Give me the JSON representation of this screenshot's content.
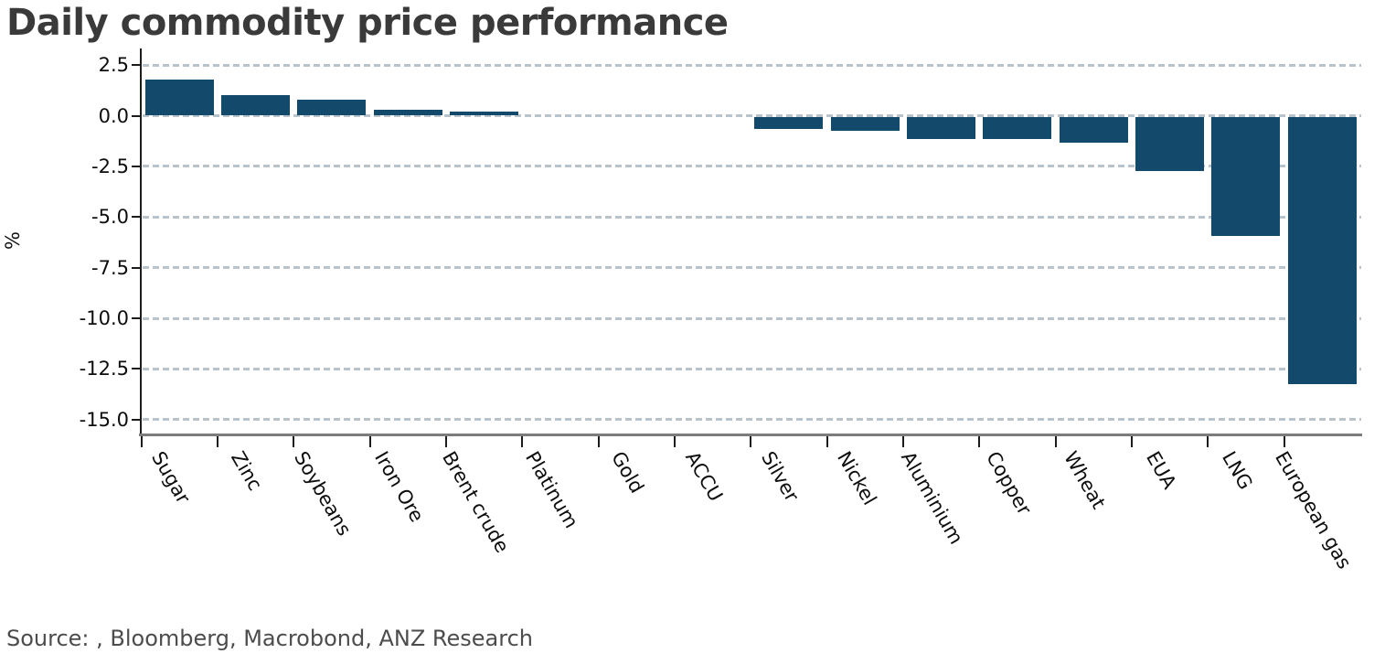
{
  "title": "Daily commodity price performance",
  "source_note": "Source: , Bloomberg, Macrobond, ANZ Research",
  "colors": {
    "bar": "#13496b",
    "gridline": "#b9c3cb",
    "axis_bottom": "#7c7c7c",
    "axis_left": "#1c1c1c",
    "title": "#3a3a3a",
    "source": "#4c4c4c",
    "tick_label": "#0d0d0d"
  },
  "chart_data": {
    "type": "bar",
    "title": "Daily commodity price performance",
    "xlabel": "",
    "ylabel": "%",
    "categories": [
      "Sugar",
      "Zinc",
      "Soybeans",
      "Iron Ore",
      "Brent crude",
      "Platinum",
      "Gold",
      "ACCU",
      "Silver",
      "Nickel",
      "Aluminium",
      "Copper",
      "Wheat",
      "EUA",
      "LNG",
      "European gas"
    ],
    "values": [
      1.8,
      1.0,
      0.8,
      0.3,
      0.2,
      0.0,
      0.0,
      0.0,
      -0.6,
      -0.7,
      -1.1,
      -1.1,
      -1.3,
      -2.7,
      -5.9,
      -13.2
    ],
    "yticks": [
      2.5,
      0.0,
      -2.5,
      -5.0,
      -7.5,
      -10.0,
      -12.5,
      -15.0
    ],
    "ytick_labels": [
      "2.5",
      "0.0",
      "-2.5",
      "-5.0",
      "-7.5",
      "-10.0",
      "-12.5",
      "-15.0"
    ],
    "ylim": [
      -15.8,
      3.3
    ],
    "grid": "horizontal-dashed",
    "legend": "none",
    "bar_color": "#13496b",
    "unit": "%"
  }
}
